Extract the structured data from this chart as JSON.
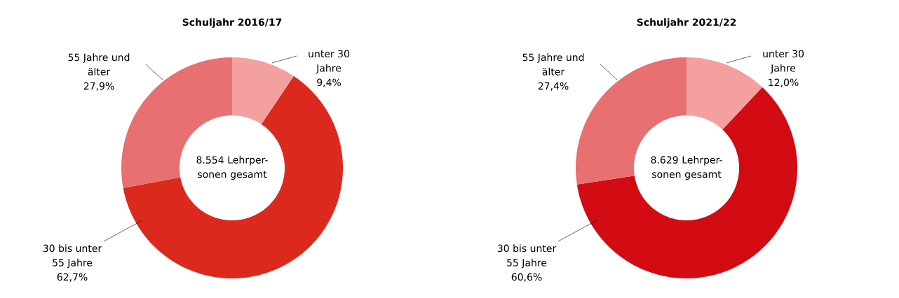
{
  "chart_data": [
    {
      "type": "donut",
      "title": "Schuljahr 2016/17",
      "categories": [
        "unter 30 Jahre",
        "30 bis unter 55 Jahre",
        "55 Jahre und älter"
      ],
      "values": [
        9.4,
        62.7,
        27.9
      ],
      "value_labels": [
        "9,4%",
        "62,7%",
        "27,9%"
      ],
      "colors": [
        "#f4a0a0",
        "#dc291e",
        "#e87070"
      ],
      "annotations": [
        "8.554 Lehrper-sonen gesamt"
      ]
    },
    {
      "type": "donut",
      "title": "Schuljahr 2021/22",
      "categories": [
        "unter 30 Jahre",
        "30 bis unter 55 Jahre",
        "55 Jahre und älter"
      ],
      "values": [
        12.0,
        60.6,
        27.4
      ],
      "value_labels": [
        "12,0%",
        "60,6%",
        "27,4%"
      ],
      "colors": [
        "#f4a0a0",
        "#d20c12",
        "#e87070"
      ],
      "annotations": [
        "8.629 Lehrper-sonen gesamt"
      ]
    }
  ]
}
